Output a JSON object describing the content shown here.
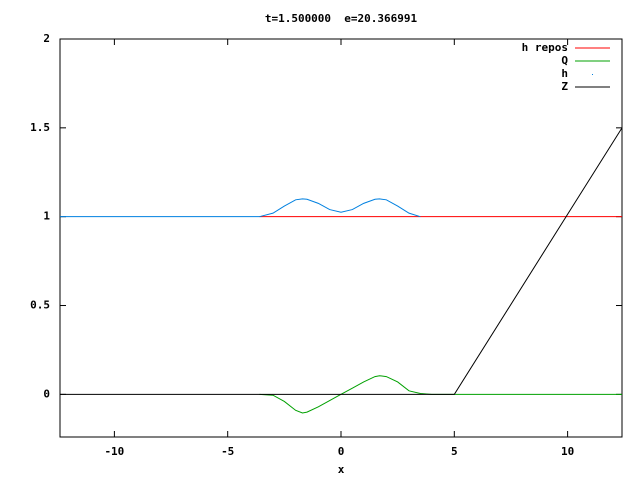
{
  "chart_data": {
    "type": "line",
    "title": "t=1.500000  e=20.366991",
    "x_label": "x",
    "x": [
      -12.4,
      -4,
      -3.6,
      -3,
      -2.5,
      -2,
      -1.7,
      -1.5,
      -1,
      -0.5,
      0,
      0.5,
      1,
      1.5,
      1.7,
      2,
      2.5,
      3,
      3.5,
      4,
      5,
      10,
      12.4
    ],
    "series": [
      {
        "name": "h repos",
        "color": "#ff0000",
        "style": "lines",
        "values": [
          null,
          null,
          1,
          1,
          1,
          1,
          1,
          1,
          1,
          1,
          1,
          1,
          1,
          1,
          1,
          1,
          1,
          1,
          1,
          1,
          1,
          1,
          1
        ]
      },
      {
        "name": "Q",
        "color": "#00a000",
        "style": "lines",
        "values": [
          null,
          null,
          0,
          -0.005,
          -0.04,
          -0.09,
          -0.105,
          -0.1,
          -0.07,
          -0.035,
          0,
          0.035,
          0.07,
          0.1,
          0.105,
          0.1,
          0.07,
          0.02,
          0.005,
          0,
          0,
          0,
          0
        ]
      },
      {
        "name": "h",
        "color": "#0080e0",
        "style": "dots",
        "values": [
          1,
          1,
          1,
          1.02,
          1.06,
          1.095,
          1.1,
          1.098,
          1.075,
          1.04,
          1.025,
          1.04,
          1.075,
          1.098,
          1.1,
          1.095,
          1.06,
          1.02,
          1,
          null,
          null,
          null,
          null
        ]
      },
      {
        "name": "Z",
        "color": "#000000",
        "style": "lines",
        "values": [
          0,
          0,
          0,
          0,
          0,
          0,
          0,
          0,
          0,
          0,
          0,
          0,
          0,
          0,
          0,
          0,
          0,
          0,
          0,
          0,
          0,
          1.0135,
          1.5
        ]
      }
    ],
    "xlim": [
      -12.4,
      12.4
    ],
    "ylim": [
      -0.24,
      2
    ],
    "xticks": [
      -10,
      -5,
      0,
      5,
      10
    ],
    "yticks": [
      0,
      0.5,
      1,
      1.5,
      2
    ],
    "legend": "top-right"
  }
}
